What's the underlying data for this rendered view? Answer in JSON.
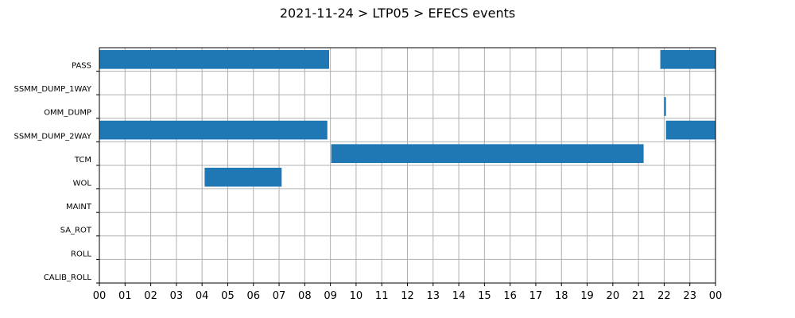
{
  "chart_data": {
    "type": "bar",
    "orientation": "horizontal",
    "title": "2021-11-24 > LTP05 > EFECS events",
    "xlabel": "",
    "ylabel": "",
    "grid": true,
    "color": "#1f77b4",
    "xlim": [
      0,
      24
    ],
    "xticks": [
      "00",
      "01",
      "02",
      "03",
      "04",
      "05",
      "06",
      "07",
      "08",
      "09",
      "10",
      "11",
      "12",
      "13",
      "14",
      "15",
      "16",
      "17",
      "18",
      "19",
      "20",
      "21",
      "22",
      "23",
      "00"
    ],
    "categories": [
      "PASS",
      "SSMM_DUMP_1WAY",
      "OMM_DUMP",
      "SSMM_DUMP_2WAY",
      "TCM",
      "WOL",
      "MAINT",
      "SA_ROT",
      "ROLL",
      "CALIB_ROLL"
    ],
    "events": [
      {
        "category": "PASS",
        "start": 0.0,
        "end": 8.95
      },
      {
        "category": "PASS",
        "start": 21.85,
        "end": 24.0
      },
      {
        "category": "OMM_DUMP",
        "start": 22.0,
        "end": 22.07
      },
      {
        "category": "SSMM_DUMP_2WAY",
        "start": 0.0,
        "end": 8.88
      },
      {
        "category": "SSMM_DUMP_2WAY",
        "start": 22.07,
        "end": 24.0
      },
      {
        "category": "TCM",
        "start": 9.03,
        "end": 21.2
      },
      {
        "category": "WOL",
        "start": 4.1,
        "end": 7.1
      }
    ]
  }
}
